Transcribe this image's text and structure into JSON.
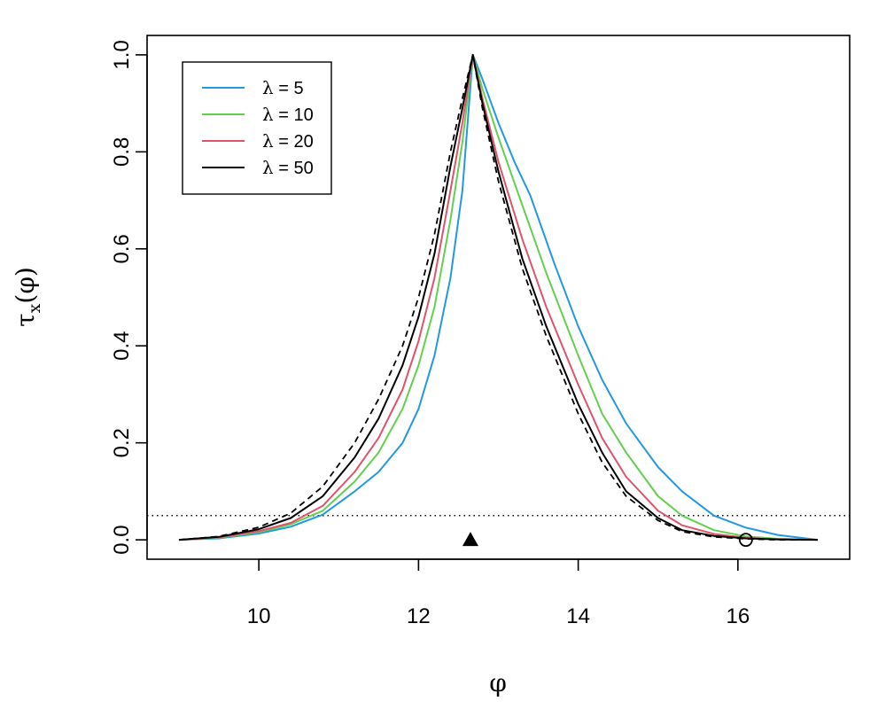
{
  "chart_data": {
    "type": "line",
    "xlabel": "φ",
    "ylabel": "τ",
    "ylabel_sub": "x",
    "ylabel_arg": "(φ)",
    "xlim": [
      8.6,
      17.4
    ],
    "ylim": [
      -0.04,
      1.04
    ],
    "x_ticks": [
      10,
      12,
      14,
      16
    ],
    "x_tick_labels": [
      "10",
      "12",
      "14",
      "16"
    ],
    "y_ticks": [
      0.0,
      0.2,
      0.4,
      0.6,
      0.8,
      1.0
    ],
    "y_tick_labels": [
      "0.0",
      "0.2",
      "0.4",
      "0.6",
      "0.8",
      "1.0"
    ],
    "legend_position": "top-left",
    "series": [
      {
        "name": "λ = 5",
        "legend_symbol": "λ",
        "legend_value": "5",
        "color": "#2297e6",
        "x": [
          9.0,
          9.5,
          10.0,
          10.4,
          10.8,
          11.2,
          11.5,
          11.8,
          12.0,
          12.2,
          12.4,
          12.55,
          12.68,
          12.8,
          13.0,
          13.2,
          13.4,
          13.7,
          14.0,
          14.3,
          14.6,
          15.0,
          15.3,
          15.7,
          16.1,
          16.5,
          17.0
        ],
        "y": [
          0.0,
          0.003,
          0.013,
          0.027,
          0.052,
          0.1,
          0.14,
          0.2,
          0.27,
          0.38,
          0.54,
          0.72,
          1.0,
          0.95,
          0.86,
          0.78,
          0.71,
          0.57,
          0.44,
          0.33,
          0.24,
          0.15,
          0.1,
          0.05,
          0.025,
          0.01,
          0.0
        ]
      },
      {
        "name": "λ = 10",
        "legend_symbol": "λ",
        "legend_value": "10",
        "color": "#61d04f",
        "x": [
          9.0,
          9.5,
          10.0,
          10.4,
          10.8,
          11.2,
          11.5,
          11.8,
          12.0,
          12.2,
          12.4,
          12.55,
          12.68,
          12.8,
          13.0,
          13.3,
          13.6,
          14.0,
          14.3,
          14.6,
          15.0,
          15.3,
          15.7,
          16.1,
          16.5,
          17.0
        ],
        "y": [
          0.0,
          0.004,
          0.016,
          0.032,
          0.06,
          0.12,
          0.18,
          0.27,
          0.36,
          0.48,
          0.66,
          0.82,
          1.0,
          0.93,
          0.83,
          0.69,
          0.55,
          0.38,
          0.26,
          0.18,
          0.09,
          0.05,
          0.02,
          0.007,
          0.002,
          0.0
        ]
      },
      {
        "name": "λ = 20",
        "legend_symbol": "λ",
        "legend_value": "20",
        "color": "#df536b",
        "x": [
          9.0,
          9.5,
          10.0,
          10.4,
          10.8,
          11.2,
          11.5,
          11.8,
          12.0,
          12.2,
          12.4,
          12.55,
          12.68,
          12.8,
          13.0,
          13.3,
          13.6,
          14.0,
          14.3,
          14.6,
          15.0,
          15.3,
          15.7,
          16.1,
          16.5,
          17.0
        ],
        "y": [
          0.0,
          0.005,
          0.018,
          0.035,
          0.07,
          0.14,
          0.21,
          0.31,
          0.41,
          0.54,
          0.72,
          0.86,
          1.0,
          0.91,
          0.78,
          0.62,
          0.48,
          0.32,
          0.21,
          0.13,
          0.06,
          0.03,
          0.012,
          0.004,
          0.001,
          0.0
        ]
      },
      {
        "name": "λ = 50",
        "legend_symbol": "λ",
        "legend_value": "50",
        "color": "#000000",
        "x": [
          9.0,
          9.5,
          10.0,
          10.4,
          10.8,
          11.2,
          11.5,
          11.8,
          12.0,
          12.2,
          12.4,
          12.55,
          12.68,
          12.8,
          13.0,
          13.3,
          13.6,
          14.0,
          14.3,
          14.6,
          15.0,
          15.3,
          15.7,
          16.1,
          16.5,
          17.0
        ],
        "y": [
          0.0,
          0.006,
          0.022,
          0.045,
          0.09,
          0.17,
          0.25,
          0.36,
          0.46,
          0.59,
          0.77,
          0.89,
          1.0,
          0.9,
          0.76,
          0.58,
          0.44,
          0.28,
          0.18,
          0.1,
          0.045,
          0.02,
          0.008,
          0.003,
          0.001,
          0.0
        ]
      }
    ],
    "reference_curve": {
      "style": "dashed",
      "color": "#000000",
      "x": [
        9.0,
        9.5,
        10.0,
        10.4,
        10.8,
        11.2,
        11.5,
        11.8,
        12.0,
        12.2,
        12.4,
        12.55,
        12.68,
        12.8,
        13.0,
        13.3,
        13.6,
        14.0,
        14.3,
        14.6,
        15.0,
        15.3,
        15.7,
        16.1,
        16.5,
        17.0
      ],
      "y": [
        0.0,
        0.007,
        0.026,
        0.055,
        0.11,
        0.2,
        0.29,
        0.4,
        0.5,
        0.63,
        0.8,
        0.91,
        1.0,
        0.89,
        0.74,
        0.56,
        0.42,
        0.26,
        0.16,
        0.09,
        0.04,
        0.017,
        0.006,
        0.002,
        0.0,
        0.0
      ]
    },
    "threshold_line": {
      "y": 0.05,
      "style": "dotted",
      "color": "#000000"
    },
    "markers": [
      {
        "shape": "filled-triangle",
        "x": 12.65,
        "y": 0.0,
        "color": "#000000"
      },
      {
        "shape": "open-circle",
        "x": 16.1,
        "y": 0.0,
        "color": "#000000"
      }
    ]
  }
}
